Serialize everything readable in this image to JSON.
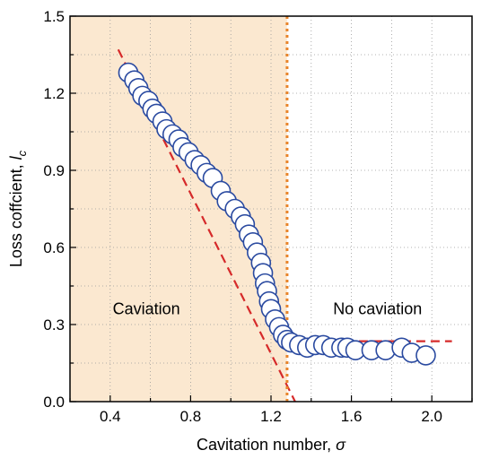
{
  "chart_data": {
    "type": "scatter",
    "title": "",
    "xlabel": "Cavitation number, ",
    "xlabel_symbol": "σ",
    "ylabel": "Loss coffcient, ",
    "ylabel_symbol": "l",
    "ylabel_subscript": "c",
    "xlim": [
      0.2,
      2.2
    ],
    "ylim": [
      0.0,
      1.5
    ],
    "x_ticks": [
      0.4,
      0.8,
      1.2,
      1.6,
      2.0
    ],
    "x_tick_labels": [
      "0.4",
      "0.8",
      "1.2",
      "1.6",
      "2.0"
    ],
    "y_ticks": [
      0.0,
      0.3,
      0.6,
      0.9,
      1.2,
      1.5
    ],
    "y_tick_labels": [
      "0.0",
      "0.3",
      "0.6",
      "0.9",
      "1.2",
      "1.5"
    ],
    "grid": true,
    "regions": [
      {
        "label": "Caviation",
        "x_from": 0.2,
        "x_to": 1.28,
        "color": "#fbe8d0",
        "label_x": 0.58,
        "label_y": 0.34
      },
      {
        "label": "No caviation",
        "x_from": 1.28,
        "x_to": 2.2,
        "color": "#ffffff",
        "label_x": 1.73,
        "label_y": 0.34
      }
    ],
    "boundary_line": {
      "x": 1.28,
      "color": "#e8842a"
    },
    "fit_lines": [
      {
        "points": [
          [
            0.44,
            1.37
          ],
          [
            1.32,
            0.0
          ]
        ],
        "color": "#d62a2a"
      },
      {
        "points": [
          [
            1.28,
            0.235
          ],
          [
            2.1,
            0.235
          ]
        ],
        "color": "#d62a2a"
      }
    ],
    "series": [
      {
        "marker_color": "#2a4aa0",
        "points": [
          [
            0.49,
            1.28
          ],
          [
            0.52,
            1.25
          ],
          [
            0.54,
            1.22
          ],
          [
            0.56,
            1.19
          ],
          [
            0.59,
            1.17
          ],
          [
            0.61,
            1.14
          ],
          [
            0.63,
            1.12
          ],
          [
            0.66,
            1.09
          ],
          [
            0.68,
            1.06
          ],
          [
            0.71,
            1.04
          ],
          [
            0.74,
            1.02
          ],
          [
            0.76,
            0.99
          ],
          [
            0.79,
            0.97
          ],
          [
            0.82,
            0.94
          ],
          [
            0.85,
            0.92
          ],
          [
            0.88,
            0.89
          ],
          [
            0.91,
            0.87
          ],
          [
            0.95,
            0.82
          ],
          [
            0.98,
            0.78
          ],
          [
            1.02,
            0.75
          ],
          [
            1.05,
            0.72
          ],
          [
            1.07,
            0.69
          ],
          [
            1.09,
            0.65
          ],
          [
            1.11,
            0.62
          ],
          [
            1.13,
            0.58
          ],
          [
            1.15,
            0.54
          ],
          [
            1.16,
            0.5
          ],
          [
            1.17,
            0.46
          ],
          [
            1.18,
            0.43
          ],
          [
            1.19,
            0.39
          ],
          [
            1.2,
            0.36
          ],
          [
            1.22,
            0.32
          ],
          [
            1.24,
            0.29
          ],
          [
            1.26,
            0.26
          ],
          [
            1.28,
            0.24
          ],
          [
            1.3,
            0.23
          ],
          [
            1.34,
            0.22
          ],
          [
            1.38,
            0.21
          ],
          [
            1.42,
            0.22
          ],
          [
            1.46,
            0.22
          ],
          [
            1.5,
            0.21
          ],
          [
            1.55,
            0.21
          ],
          [
            1.58,
            0.21
          ],
          [
            1.62,
            0.2
          ],
          [
            1.7,
            0.2
          ],
          [
            1.77,
            0.2
          ],
          [
            1.85,
            0.21
          ],
          [
            1.9,
            0.19
          ],
          [
            1.97,
            0.18
          ]
        ]
      }
    ]
  }
}
